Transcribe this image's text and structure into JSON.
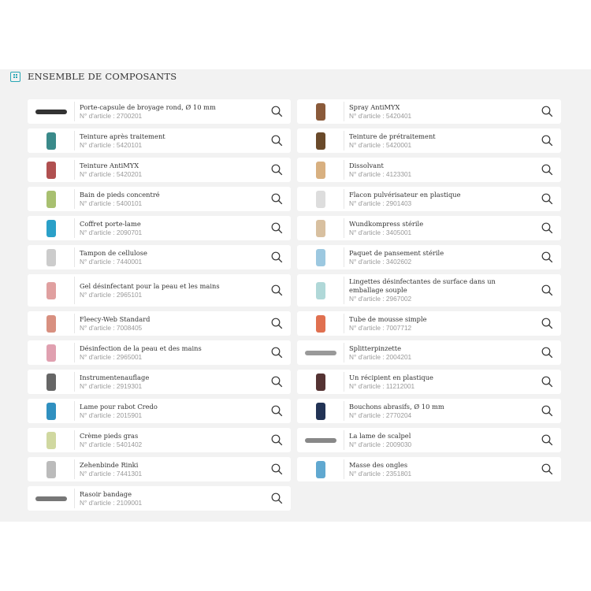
{
  "section": {
    "title": "ENSEMBLE DE COMPOSANTS",
    "icon": "grid-icon",
    "accent": "#2aa7b5"
  },
  "article_prefix": "N° d'article : ",
  "items": [
    {
      "name": "Porte-capsule de broyage rond, Ø 10 mm",
      "number": "2700201",
      "thumb": "#333"
    },
    {
      "name": "Spray AntiMYX",
      "number": "5420401",
      "thumb": "#8a5a3a"
    },
    {
      "name": "Teinture après traitement",
      "number": "5420101",
      "thumb": "#3a8a8a"
    },
    {
      "name": "Teinture de prétraitement",
      "number": "5420001",
      "thumb": "#6a4a2a"
    },
    {
      "name": "Teinture AntiMYX",
      "number": "5420201",
      "thumb": "#b05050"
    },
    {
      "name": "Dissolvant",
      "number": "4123301",
      "thumb": "#d8b080"
    },
    {
      "name": "Bain de pieds concentré",
      "number": "5400101",
      "thumb": "#a8c070"
    },
    {
      "name": "Flacon pulvérisateur en plastique",
      "number": "2901403",
      "thumb": "#ddd"
    },
    {
      "name": "Coffret porte-lame",
      "number": "2090701",
      "thumb": "#2aa0c8"
    },
    {
      "name": "Wundkompress stérile",
      "number": "3405001",
      "thumb": "#d8c0a0"
    },
    {
      "name": "Tampon de cellulose",
      "number": "7440001",
      "thumb": "#ccc"
    },
    {
      "name": "Paquet de pansement stérile",
      "number": "3402602",
      "thumb": "#9cc8e0"
    },
    {
      "name": "Gel désinfectant pour la peau et les mains",
      "number": "2965101",
      "thumb": "#e0a0a0"
    },
    {
      "name": "Lingettes désinfectantes de surface dans un emballage souple",
      "number": "2967002",
      "thumb": "#b0d8d8"
    },
    {
      "name": "Fleecy-Web Standard",
      "number": "7008405",
      "thumb": "#d89080"
    },
    {
      "name": "Tube de mousse simple",
      "number": "7007712",
      "thumb": "#e07050"
    },
    {
      "name": "Désinfection de la peau et des mains",
      "number": "2965001",
      "thumb": "#e0a0b0"
    },
    {
      "name": "Splitterpinzette",
      "number": "2004201",
      "thumb": "#999"
    },
    {
      "name": "Instrumentenauflage",
      "number": "2919301",
      "thumb": "#666"
    },
    {
      "name": "Un récipient en plastique",
      "number": "11212001",
      "thumb": "#553333"
    },
    {
      "name": "Lame pour rabot Credo",
      "number": "2015901",
      "thumb": "#3090c0"
    },
    {
      "name": "Bouchons abrasifs, Ø 10 mm",
      "number": "2770204",
      "thumb": "#223355"
    },
    {
      "name": "Crème pieds gras",
      "number": "5401402",
      "thumb": "#d0d8a0"
    },
    {
      "name": "La lame de scalpel",
      "number": "2009030",
      "thumb": "#888"
    },
    {
      "name": "Zehenbinde Rinki",
      "number": "7441301",
      "thumb": "#bbb"
    },
    {
      "name": "Masse des ongles",
      "number": "2351801",
      "thumb": "#60a8d0"
    },
    {
      "name": "Rasoir bandage",
      "number": "2109001",
      "thumb": "#777"
    }
  ]
}
